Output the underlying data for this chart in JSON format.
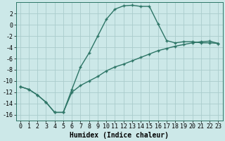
{
  "xlabel": "Humidex (Indice chaleur)",
  "line_color": "#2d7566",
  "bg_color": "#cce8e8",
  "grid_color": "#aacccc",
  "xlim": [
    -0.5,
    23.5
  ],
  "ylim": [
    -17,
    4
  ],
  "yticks": [
    2,
    0,
    -2,
    -4,
    -6,
    -8,
    -10,
    -12,
    -14,
    -16
  ],
  "xticks": [
    0,
    1,
    2,
    3,
    4,
    5,
    6,
    7,
    8,
    9,
    10,
    11,
    12,
    13,
    14,
    15,
    16,
    17,
    18,
    19,
    20,
    21,
    22,
    23
  ],
  "curve1_x": [
    0,
    1,
    2,
    3,
    4,
    5,
    6,
    7,
    8,
    9,
    10,
    11,
    12,
    13,
    14,
    15,
    16,
    17,
    18,
    19,
    20,
    21,
    22,
    23
  ],
  "curve1_y": [
    -11,
    -11.5,
    -12.5,
    -13.8,
    -15.6,
    -15.6,
    -11.5,
    -7.5,
    -5.0,
    -2.0,
    1.0,
    2.8,
    3.4,
    3.5,
    3.3,
    3.3,
    0.2,
    -2.8,
    -3.2,
    -3.0,
    -3.0,
    -3.2,
    -3.2,
    -3.3
  ],
  "curve2_x": [
    0,
    1,
    2,
    3,
    4,
    5,
    6,
    7,
    8,
    9,
    10,
    11,
    12,
    13,
    14,
    15,
    16,
    17,
    18,
    19,
    20,
    21,
    22,
    23
  ],
  "curve2_y": [
    -11,
    -11.5,
    -12.5,
    -13.8,
    -15.6,
    -15.6,
    -12.0,
    -10.8,
    -10.0,
    -9.2,
    -8.2,
    -7.5,
    -7.0,
    -6.4,
    -5.8,
    -5.2,
    -4.6,
    -4.2,
    -3.8,
    -3.5,
    -3.2,
    -3.0,
    -2.9,
    -3.3
  ],
  "marker": "+",
  "markersize": 3.5,
  "markeredgewidth": 1.0,
  "linewidth": 1.0,
  "fontsize_label": 7,
  "fontsize_tick": 6
}
